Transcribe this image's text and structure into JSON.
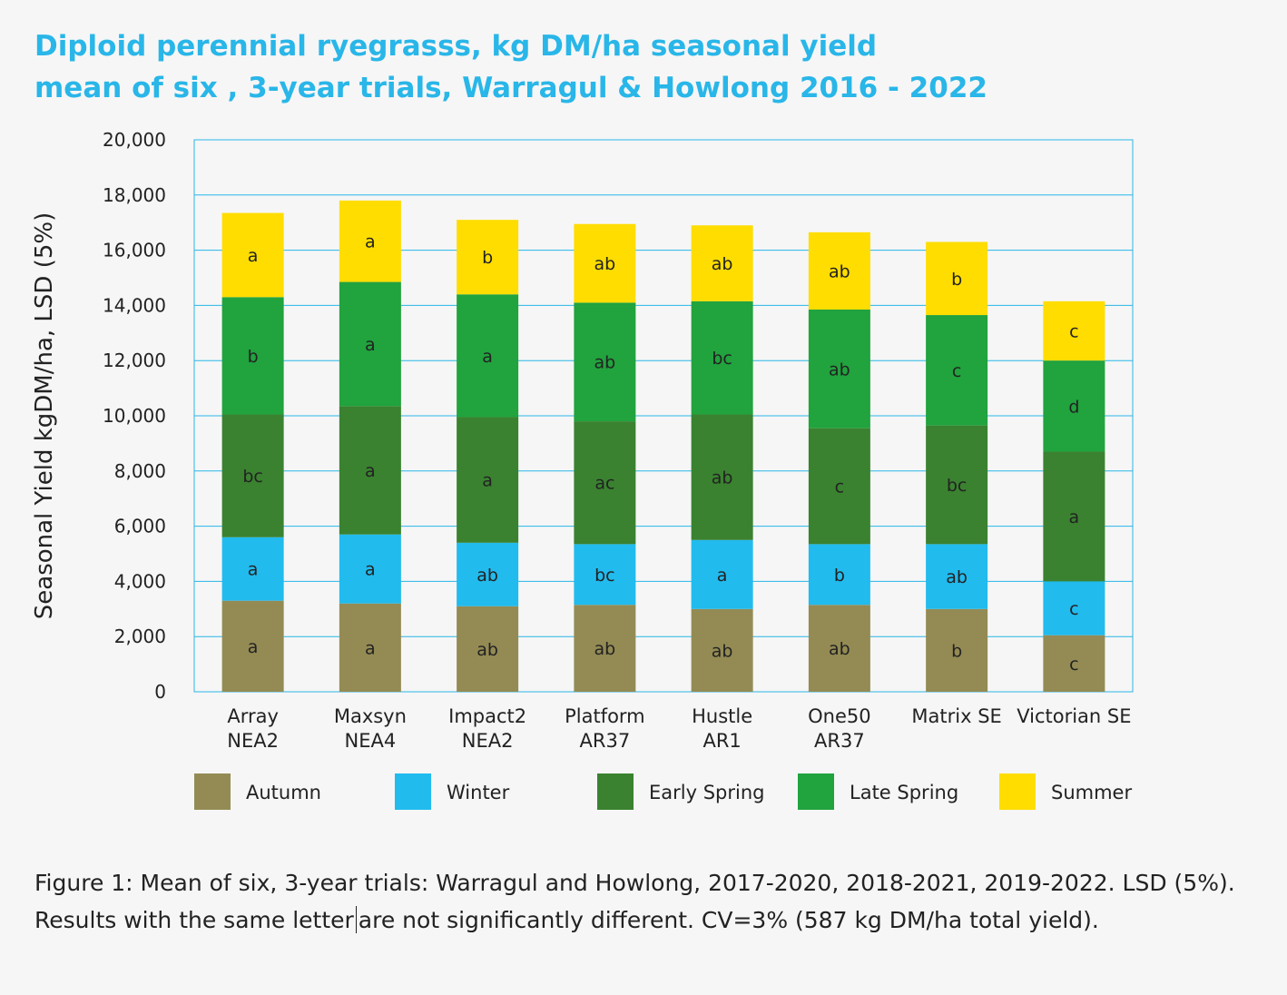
{
  "title": {
    "line1": "Diploid perennial ryegrasss, kg DM/ha seasonal yield",
    "line2": "mean of six , 3-year trials, Warragul & Howlong 2016 - 2022"
  },
  "caption": {
    "before_cursor": "Figure 1: Mean of six, 3-year trials: Warragul and Howlong, 2017-2020, 2018-2021, 2019-2022. LSD (5%). Results with the same letter",
    "after_cursor": "are not significantly different. CV=3% (587 kg DM/ha total yield)."
  },
  "chart_data": {
    "type": "bar",
    "stacked": true,
    "ylabel": "Seasonal Yield kgDM/ha, LSD (5%)",
    "ylim": [
      0,
      20000
    ],
    "yticks": [
      0,
      2000,
      4000,
      6000,
      8000,
      10000,
      12000,
      14000,
      16000,
      18000,
      20000
    ],
    "ytick_labels": [
      "0",
      "2,000",
      "4,000",
      "6,000",
      "8,000",
      "10,000",
      "12,000",
      "14,000",
      "16,000",
      "18,000",
      "20,000"
    ],
    "grid": true,
    "legend_position": "bottom",
    "categories": [
      [
        "Array",
        "NEA2"
      ],
      [
        "Maxsyn",
        "NEA4"
      ],
      [
        "Impact2",
        "NEA2"
      ],
      [
        "Platform",
        "AR37"
      ],
      [
        "Hustle",
        "AR1"
      ],
      [
        "One50",
        "AR37"
      ],
      [
        "Matrix SE"
      ],
      [
        "Victorian SE"
      ]
    ],
    "series": [
      {
        "name": "Autumn",
        "color": "#948b54",
        "values": [
          3300,
          3200,
          3100,
          3150,
          3000,
          3150,
          3000,
          2050
        ],
        "labels": [
          "a",
          "a",
          "ab",
          "ab",
          "ab",
          "ab",
          "b",
          "c"
        ]
      },
      {
        "name": "Winter",
        "color": "#21bbee",
        "values": [
          2300,
          2500,
          2300,
          2200,
          2500,
          2200,
          2350,
          1950
        ],
        "labels": [
          "a",
          "a",
          "ab",
          "bc",
          "a",
          "b",
          "ab",
          "c"
        ]
      },
      {
        "name": "Early Spring",
        "color": "#3a8230",
        "values": [
          4450,
          4650,
          4550,
          4450,
          4550,
          4200,
          4300,
          4700
        ],
        "labels": [
          "bc",
          "a",
          "a",
          "ac",
          "ab",
          "c",
          "bc",
          "a"
        ]
      },
      {
        "name": "Late Spring",
        "color": "#21a33e",
        "values": [
          4250,
          4500,
          4450,
          4300,
          4100,
          4300,
          4000,
          3300
        ],
        "labels": [
          "b",
          "a",
          "a",
          "ab",
          "bc",
          "ab",
          "c",
          "d"
        ]
      },
      {
        "name": "Summer",
        "color": "#ffdd00",
        "values": [
          3050,
          2950,
          2700,
          2850,
          2750,
          2800,
          2650,
          2150
        ],
        "labels": [
          "a",
          "a",
          "b",
          "ab",
          "ab",
          "ab",
          "b",
          "c"
        ]
      }
    ]
  }
}
